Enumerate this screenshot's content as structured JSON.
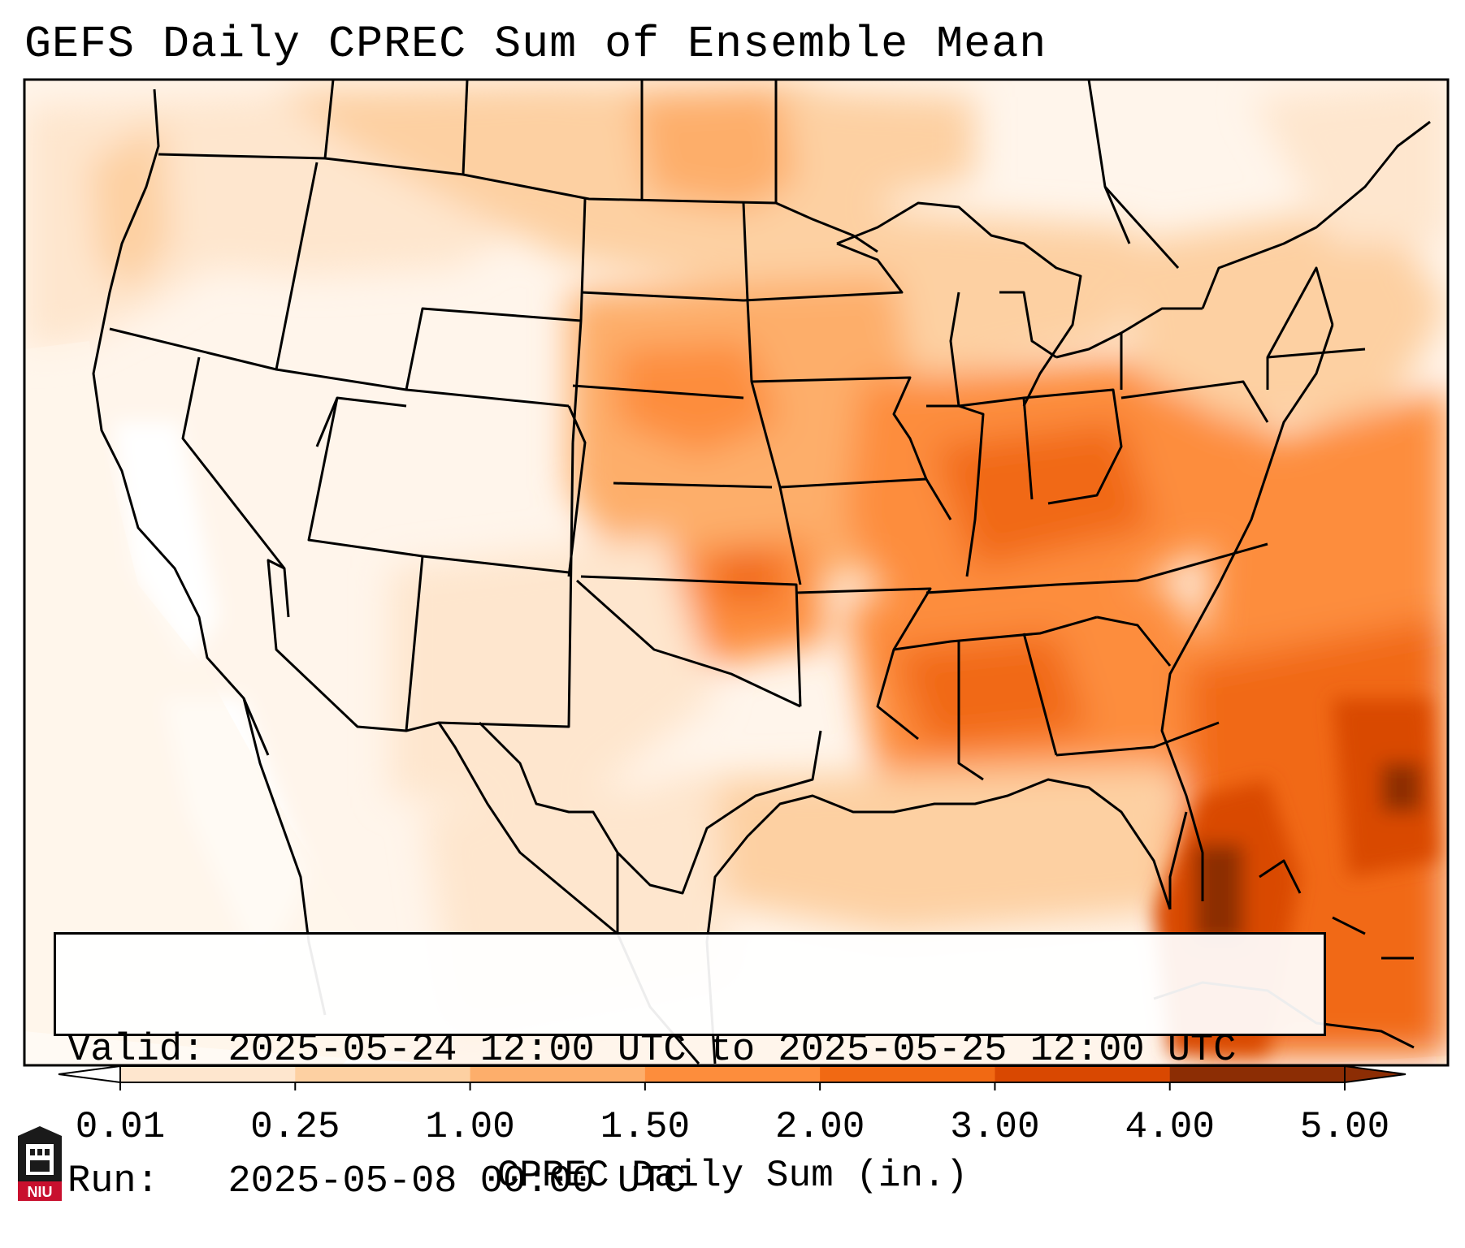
{
  "title": "GEFS Daily CPREC Sum of Ensemble Mean",
  "valid_label": "Valid:",
  "valid_value": "2025-05-24 12:00 UTC to 2025-05-25 12:00 UTC",
  "run_label": "Run:",
  "run_value": "2025-05-08 00:00 UTC",
  "colorbar": {
    "title": "CPREC Daily Sum (in.)",
    "ticks": [
      "0.01",
      "0.25",
      "1.00",
      "1.50",
      "2.00",
      "3.00",
      "4.00",
      "5.00"
    ],
    "colors": [
      "#fff5eb",
      "#fee6ce",
      "#fdd0a2",
      "#fdae6b",
      "#fd8d3c",
      "#f16913",
      "#d94801",
      "#8c2d04"
    ],
    "extend": "both"
  },
  "logo": {
    "text": "NIU",
    "icon": "niu-logo-icon"
  },
  "map": {
    "projection": "lambert-conformal",
    "region": "CONUS",
    "shading_field": "CPREC daily sum of ensemble mean",
    "heaviest_precip": [
      "Florida Straits / Bahamas",
      "Atlantic off Southeast US coast",
      "Oklahoma",
      "Ohio Valley"
    ]
  }
}
